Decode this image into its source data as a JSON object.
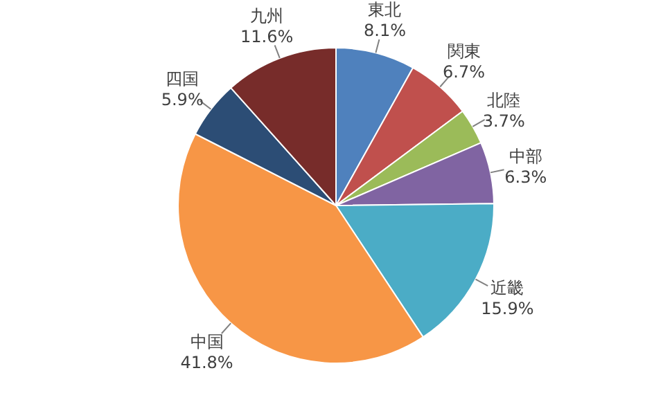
{
  "chart_data": {
    "type": "pie",
    "categories": [
      "東北",
      "関東",
      "北陸",
      "中部",
      "近畿",
      "中国",
      "四国",
      "九州"
    ],
    "values": [
      8.1,
      6.7,
      3.7,
      6.3,
      15.9,
      41.8,
      5.9,
      11.6
    ],
    "value_labels": [
      "8.1%",
      "6.7%",
      "3.7%",
      "6.3%",
      "15.9%",
      "41.8%",
      "5.9%",
      "11.6%"
    ],
    "colors": [
      "#4f81bd",
      "#c0504d",
      "#9bbb59",
      "#8064a2",
      "#4bacc6",
      "#f79646",
      "#2c4d75",
      "#772c2a"
    ],
    "legend": false
  }
}
